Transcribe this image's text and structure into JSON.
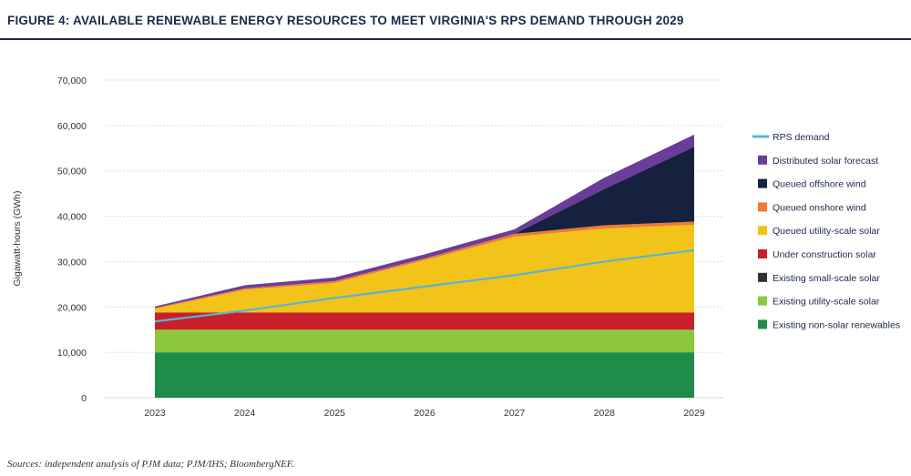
{
  "title": "FIGURE 4: AVAILABLE RENEWABLE ENERGY RESOURCES TO MEET VIRGINIA'S RPS DEMAND THROUGH 2029",
  "source": "Sources: independent analysis of PJM data; PJM/IHS; BloombergNEF.",
  "chart_data": {
    "type": "area",
    "stacked": true,
    "x": [
      "2023",
      "2024",
      "2025",
      "2026",
      "2027",
      "2028",
      "2029"
    ],
    "ylabel": "Gigawatt-hours (GWh)",
    "ylim": [
      0,
      70000
    ],
    "yticks": [
      "70,000",
      "60,000",
      "50,000",
      "40,000",
      "30,000",
      "20,000",
      "10,000",
      "0"
    ],
    "yticks_values": [
      70000,
      60000,
      50000,
      40000,
      30000,
      20000,
      10000,
      0
    ],
    "grid": true,
    "legend_position": "right",
    "series": [
      {
        "name": "Existing non-solar renewables",
        "color": "#1e8c4a",
        "values": [
          10000,
          10000,
          10000,
          10000,
          10000,
          10000,
          10000
        ]
      },
      {
        "name": "Existing utility-scale solar",
        "color": "#8dc63f",
        "values": [
          5000,
          5000,
          5000,
          5000,
          5000,
          5000,
          5000
        ]
      },
      {
        "name": "Existing small-scale solar",
        "color": "#333333",
        "values": [
          0,
          0,
          0,
          0,
          0,
          0,
          0
        ]
      },
      {
        "name": "Under construction solar",
        "color": "#c8202a",
        "values": [
          3800,
          3800,
          3800,
          3800,
          3800,
          3800,
          3800
        ]
      },
      {
        "name": "Queued utility-scale solar",
        "color": "#f2c318",
        "values": [
          800,
          5000,
          6500,
          11500,
          16700,
          18500,
          19300
        ]
      },
      {
        "name": "Queued onshore wind",
        "color": "#f07a2f",
        "values": [
          200,
          300,
          400,
          400,
          600,
          700,
          700
        ]
      },
      {
        "name": "Queued offshore wind",
        "color": "#16213f",
        "values": [
          0,
          0,
          0,
          0,
          0,
          8000,
          16500
        ]
      },
      {
        "name": "Distributed solar forecast",
        "color": "#6a3d9a",
        "values": [
          300,
          700,
          800,
          900,
          1000,
          2500,
          2700
        ]
      }
    ],
    "line": {
      "name": "RPS demand",
      "color": "#5ab4d9",
      "values": [
        16800,
        19200,
        22000,
        24500,
        27000,
        30000,
        32500
      ]
    }
  }
}
